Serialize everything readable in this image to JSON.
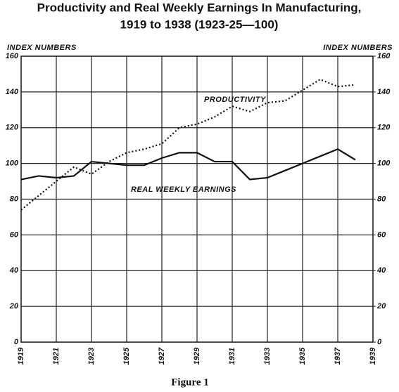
{
  "chart_data": {
    "type": "line",
    "title": "Productivity and Real Weekly Earnings In Manufacturing,",
    "subtitle": "1919 to 1938 (1923-25—100)",
    "y_label": "INDEX NUMBERS",
    "y2_label": "INDEX NUMBERS",
    "caption": "Figure 1",
    "x": [
      1919,
      1920,
      1921,
      1922,
      1923,
      1924,
      1925,
      1926,
      1927,
      1928,
      1929,
      1930,
      1931,
      1932,
      1933,
      1934,
      1935,
      1936,
      1937,
      1938
    ],
    "series": [
      {
        "name": "PRODUCTIVITY",
        "color": "#111111",
        "dash": "dotted",
        "values": [
          74,
          82,
          90,
          98,
          94,
          101,
          106,
          108,
          111,
          120,
          122,
          126,
          132,
          129,
          134,
          135,
          141,
          147,
          143,
          144
        ]
      },
      {
        "name": "REAL WEEKLY EARNINGS",
        "color": "#111111",
        "dash": "solid",
        "values": [
          91,
          93,
          92,
          93,
          101,
          100,
          99,
          99,
          103,
          106,
          106,
          101,
          101,
          91,
          92,
          96,
          100,
          104,
          108,
          102
        ]
      }
    ],
    "xlim": [
      1919,
      1939
    ],
    "xticks": [
      1919,
      1921,
      1923,
      1925,
      1927,
      1929,
      1931,
      1933,
      1935,
      1937,
      1939
    ],
    "ylim": [
      0,
      160
    ],
    "yticks": [
      0,
      20,
      40,
      60,
      80,
      100,
      120,
      140,
      160
    ],
    "y2lim": [
      0,
      160
    ],
    "y2ticks": [
      0,
      20,
      40,
      60,
      80,
      100,
      120,
      140,
      160
    ],
    "grid": true
  }
}
